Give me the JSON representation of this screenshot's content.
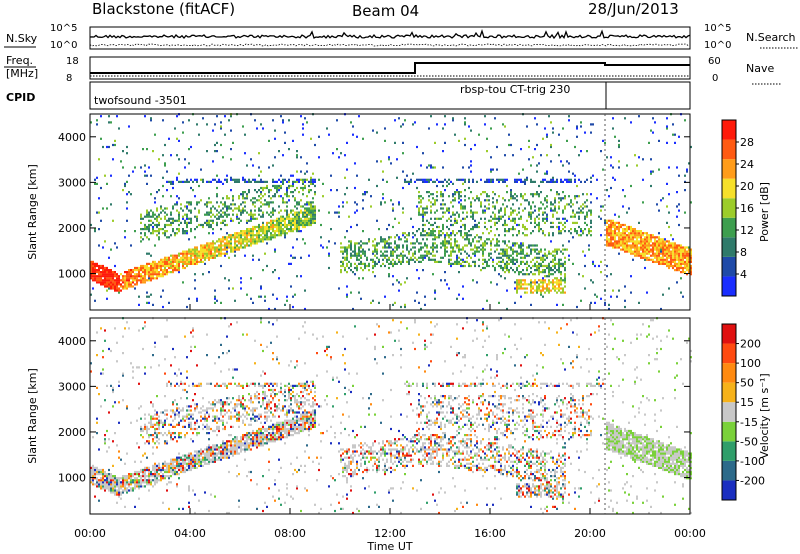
{
  "header": {
    "title": "Blackstone (fitACF)",
    "beam": "Beam 04",
    "date": "28/Jun/2013"
  },
  "noise_panel": {
    "left_label": "N.Sky",
    "right_label": "N.Search",
    "left_ticks": [
      "10^5",
      "10^0"
    ],
    "right_ticks": [
      "10^5",
      "10^0"
    ]
  },
  "freq_panel": {
    "left_label_top": "Freq.",
    "left_label_unit": "[MHz]",
    "right_label": "Nave",
    "left_ticks": [
      "18",
      "8"
    ],
    "right_ticks": [
      "60",
      "0"
    ]
  },
  "cpid_panel": {
    "label": "CPID",
    "programs": [
      {
        "name": "twofsound -3501",
        "start_hour": 0,
        "end_hour": 20.6
      },
      {
        "name": "rbsp-tou CT-trig 230",
        "start_hour": 13.0,
        "end_hour": 20.6
      }
    ]
  },
  "chart_data": [
    {
      "type": "heatmap",
      "quantity": "Power",
      "xlabel": "",
      "ylabel": "Slant Range [km]",
      "xlim_hours": [
        0,
        24
      ],
      "ylim": [
        200,
        4500
      ],
      "y_ticks": [
        1000,
        2000,
        3000,
        4000
      ],
      "colorbar": {
        "label": "Power [dB]",
        "ticks": [
          "4",
          "8",
          "12",
          "16",
          "20",
          "24",
          "28"
        ],
        "colors": [
          "#1a2eff",
          "#1f4aa8",
          "#2f7a6a",
          "#3d9e4e",
          "#9ccc2a",
          "#f6e02a",
          "#ff9c1a",
          "#ff5a12",
          "#ff1a0a"
        ]
      }
    },
    {
      "type": "heatmap",
      "quantity": "Velocity",
      "xlabel": "Time UT",
      "ylabel": "Slant Range [km]",
      "xlim_hours": [
        0,
        24
      ],
      "ylim": [
        200,
        4500
      ],
      "y_ticks": [
        1000,
        2000,
        3000,
        4000
      ],
      "x_ticks": [
        "00:00",
        "04:00",
        "08:00",
        "12:00",
        "16:00",
        "20:00",
        "00:00"
      ],
      "colorbar": {
        "label": "Velocity [m s⁻¹]",
        "ticks": [
          "200",
          "100",
          "50",
          "15",
          "-15",
          "-50",
          "-100",
          "-200"
        ],
        "colors": [
          "#1a2ec0",
          "#2d6a8a",
          "#2f9e6a",
          "#7ad13a",
          "#c8c8c8",
          "#f6b21a",
          "#ff8a10",
          "#ff4a10",
          "#e01010"
        ]
      }
    }
  ]
}
